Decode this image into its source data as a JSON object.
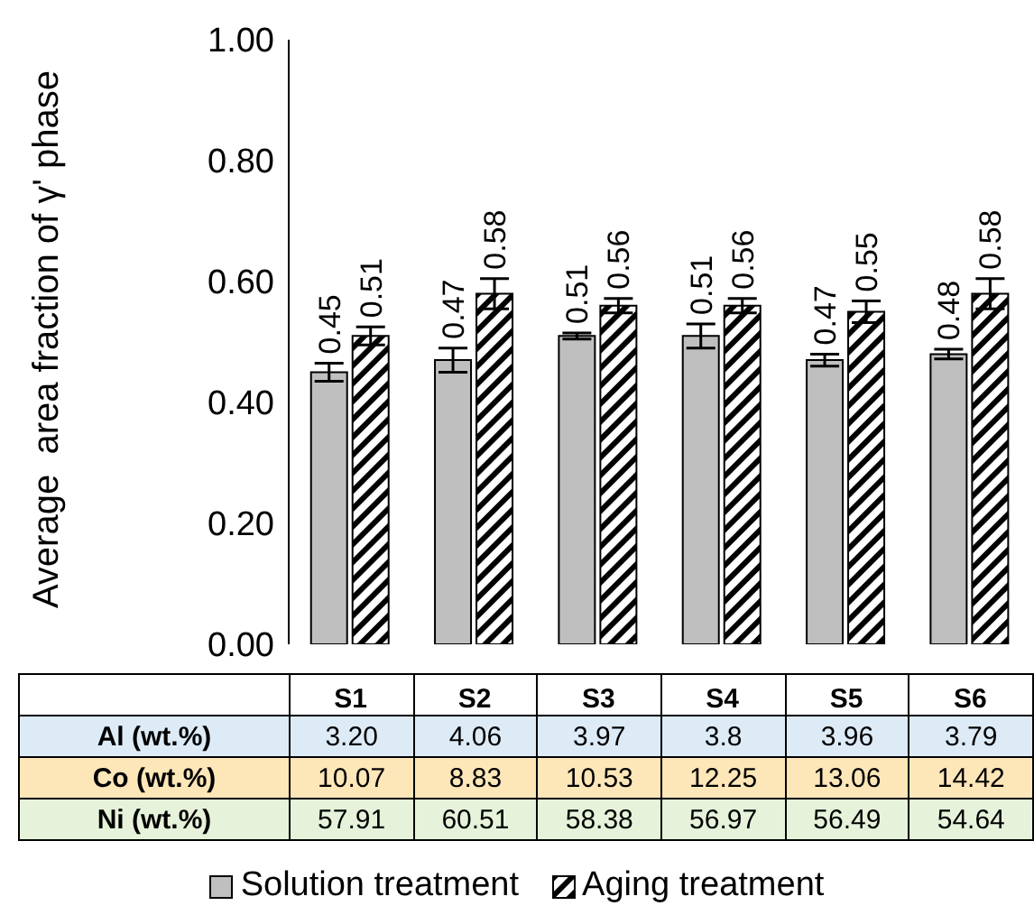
{
  "chart_data": [
    {
      "type": "bar",
      "ylabel": "Average  area fraction of γ' phase",
      "categories": [
        "S1",
        "S2",
        "S3",
        "S4",
        "S5",
        "S6"
      ],
      "series": [
        {
          "name": "Solution treatment",
          "color": "#bfbfbf",
          "values": [
            0.45,
            0.47,
            0.51,
            0.51,
            0.47,
            0.48
          ],
          "errors": [
            0.015,
            0.02,
            0.005,
            0.02,
            0.01,
            0.008
          ]
        },
        {
          "name": "Aging treatment",
          "color": "#000000",
          "values": [
            0.51,
            0.58,
            0.56,
            0.56,
            0.55,
            0.58
          ],
          "errors": [
            0.015,
            0.025,
            0.012,
            0.012,
            0.018,
            0.025
          ]
        }
      ],
      "ylim": [
        0,
        1
      ],
      "yticks": [
        {
          "value": 0,
          "label": "0.00"
        },
        {
          "value": 0.2,
          "label": "0.20"
        },
        {
          "value": 0.4,
          "label": "0.40"
        },
        {
          "value": 0.6,
          "label": "0.60"
        },
        {
          "value": 0.8,
          "label": "0.80"
        },
        {
          "value": 1,
          "label": "1.00"
        }
      ],
      "data_labels": true,
      "legend": "bottom"
    },
    {
      "type": "other",
      "y_categories": [
        "Al (wt.%)",
        "Co (wt.%)",
        "Ni (wt.%)"
      ],
      "cell_labels": [
        [
          "3.20",
          "4.06",
          "3.97",
          "3.8",
          "3.96",
          "3.79"
        ],
        [
          "10.07",
          "8.83",
          "10.53",
          "12.25",
          "13.06",
          "14.42"
        ],
        [
          "57.91",
          "60.51",
          "58.38",
          "56.97",
          "56.49",
          "54.64"
        ]
      ],
      "colors": [
        "#ddebf7",
        "#fde6b8",
        "#e6f3da"
      ]
    }
  ]
}
